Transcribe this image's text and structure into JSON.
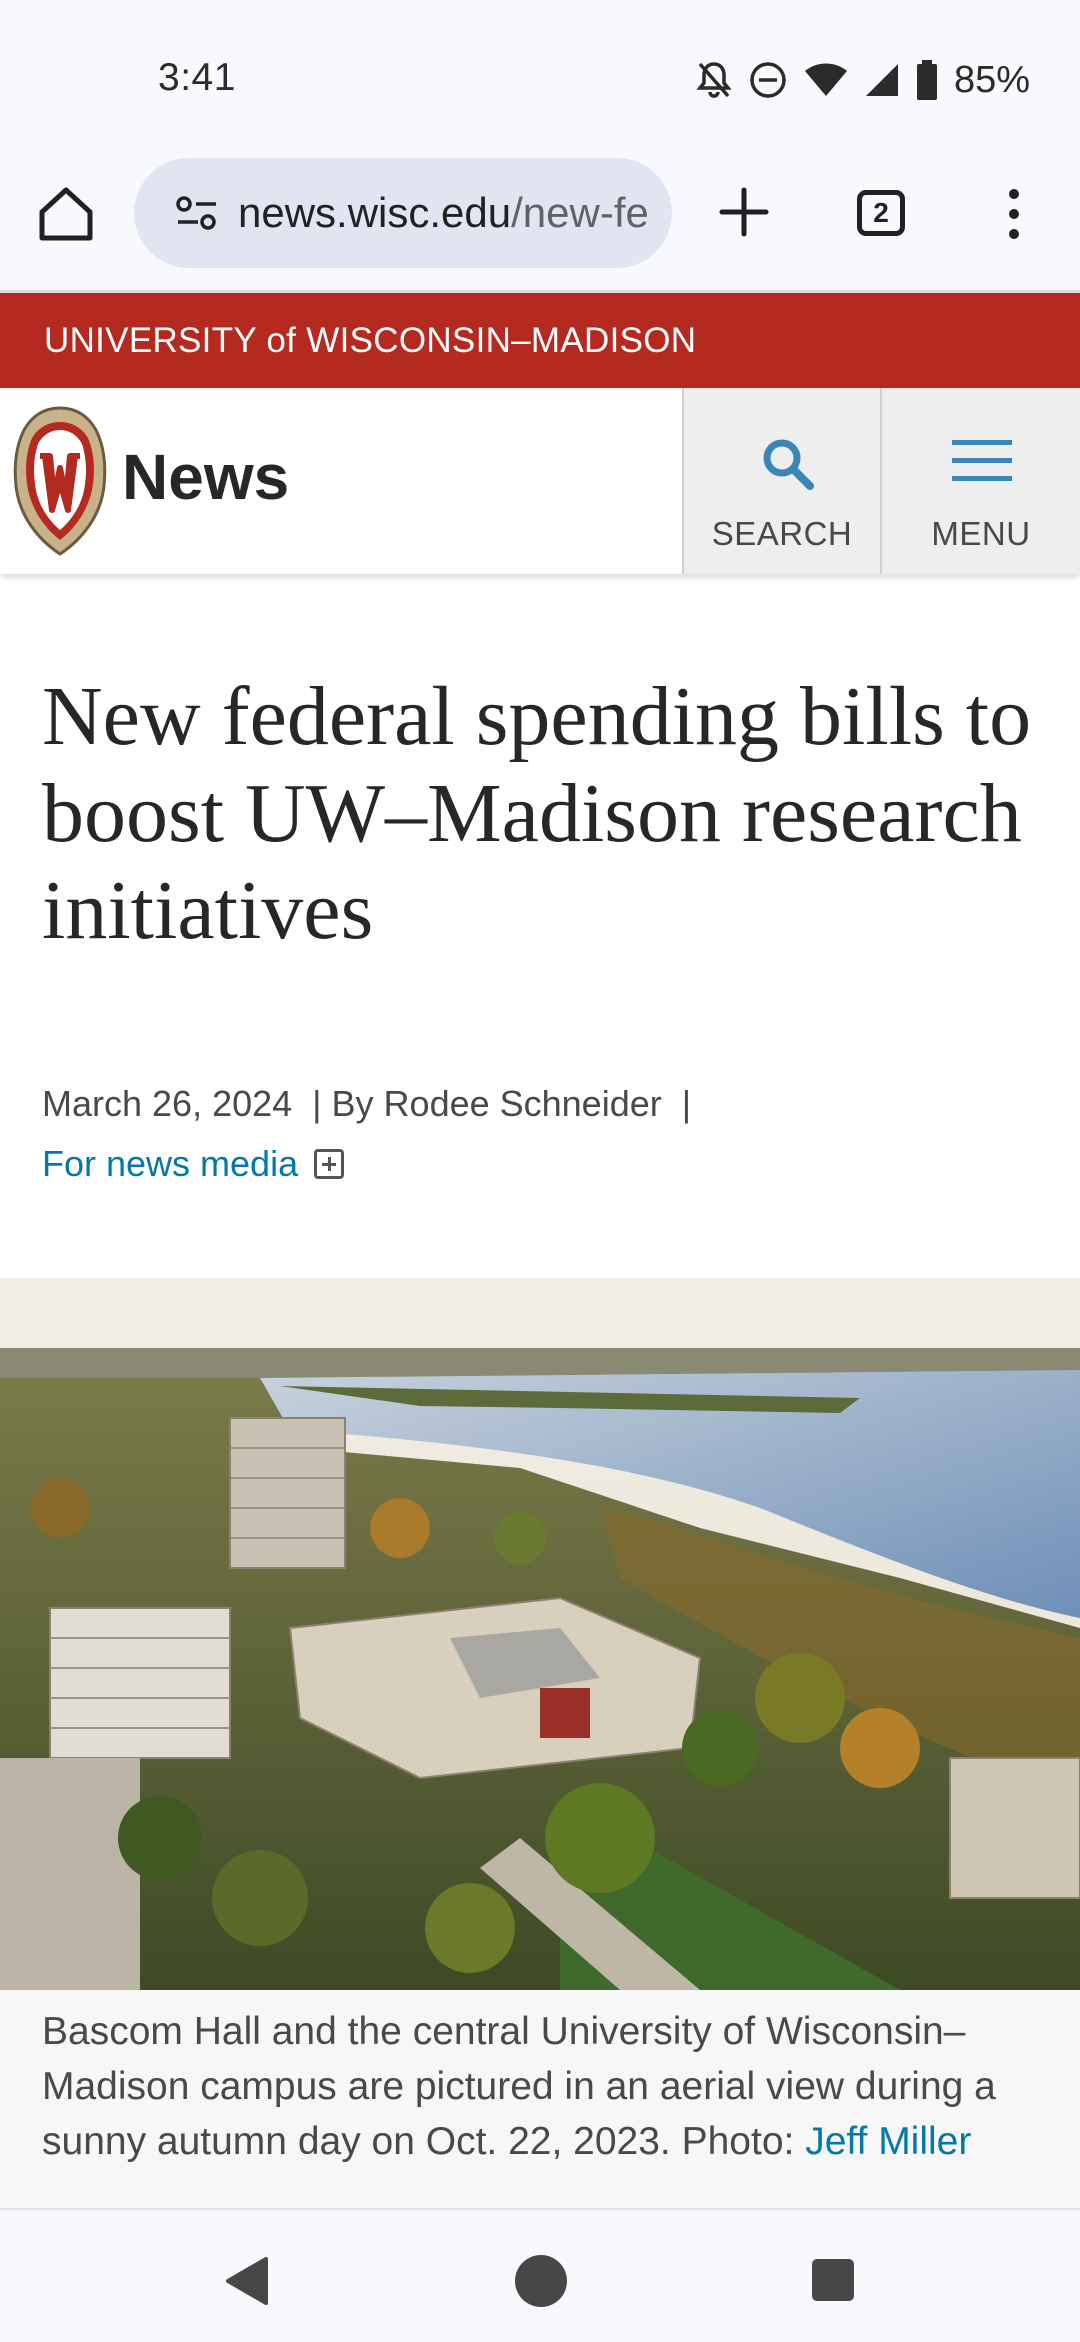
{
  "status_bar": {
    "time": "3:41",
    "battery": "85%",
    "icons": [
      "bell-off-icon",
      "do-not-disturb-icon",
      "wifi-icon",
      "cell-signal-icon",
      "battery-icon"
    ]
  },
  "browser": {
    "url_host": "news.wisc.edu",
    "url_path": "/new-fe",
    "tab_count": "2",
    "icons": [
      "home-icon",
      "site-info-icon",
      "new-tab-icon",
      "tab-switcher-icon",
      "more-menu-icon"
    ]
  },
  "site": {
    "banner": "UNIVERSITY of WISCONSIN–MADISON",
    "section": "News",
    "search_label": "SEARCH",
    "menu_label": "MENU",
    "colors": {
      "brand_red": "#b52a20",
      "link_blue": "#0479a8",
      "search_icon": "#3a86b9"
    }
  },
  "article": {
    "title": "New federal spending bills to boost UW–Madison research initiatives",
    "date": "March 26, 2024",
    "byline": "By Rodee Schneider",
    "separator": "|",
    "media_link": "For news media",
    "caption_text": "Bascom Hall and the central University of Wisconsin–Madison campus are pictured in an aerial view during a sunny autumn day on Oct. 22, 2023.",
    "caption_photo_label": "Photo:",
    "caption_photo_credit": "Jeff Miller"
  },
  "nav_bar": {
    "icons": [
      "back-icon",
      "home-circle-icon",
      "recents-icon"
    ]
  }
}
